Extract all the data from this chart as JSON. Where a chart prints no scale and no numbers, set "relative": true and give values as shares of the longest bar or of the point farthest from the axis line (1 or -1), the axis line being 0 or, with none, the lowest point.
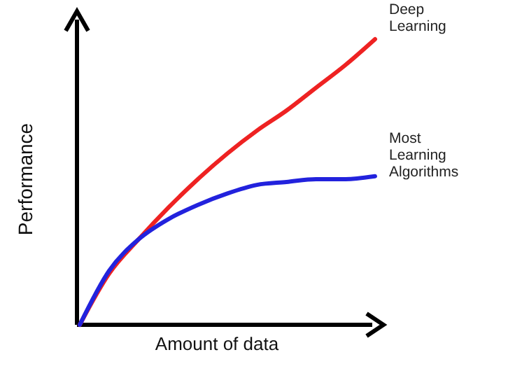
{
  "chart_data": {
    "type": "line",
    "relative": true,
    "xlabel": "Amount of data",
    "ylabel": "Performance",
    "categories": [
      null,
      null,
      null,
      null,
      null,
      null,
      null,
      null,
      null,
      null,
      null
    ],
    "series": [
      {
        "name": "Deep Learning",
        "color": "#ee2222",
        "values": [
          0,
          0.18,
          0.3,
          0.41,
          0.51,
          0.6,
          0.68,
          0.75,
          0.83,
          0.91,
          1
        ]
      },
      {
        "name": "Most Learning Algorithms",
        "color": "#2222dd",
        "values": [
          0,
          0.19,
          0.3,
          0.37,
          0.42,
          0.46,
          0.49,
          0.5,
          0.51,
          0.51,
          0.52
        ]
      }
    ]
  }
}
